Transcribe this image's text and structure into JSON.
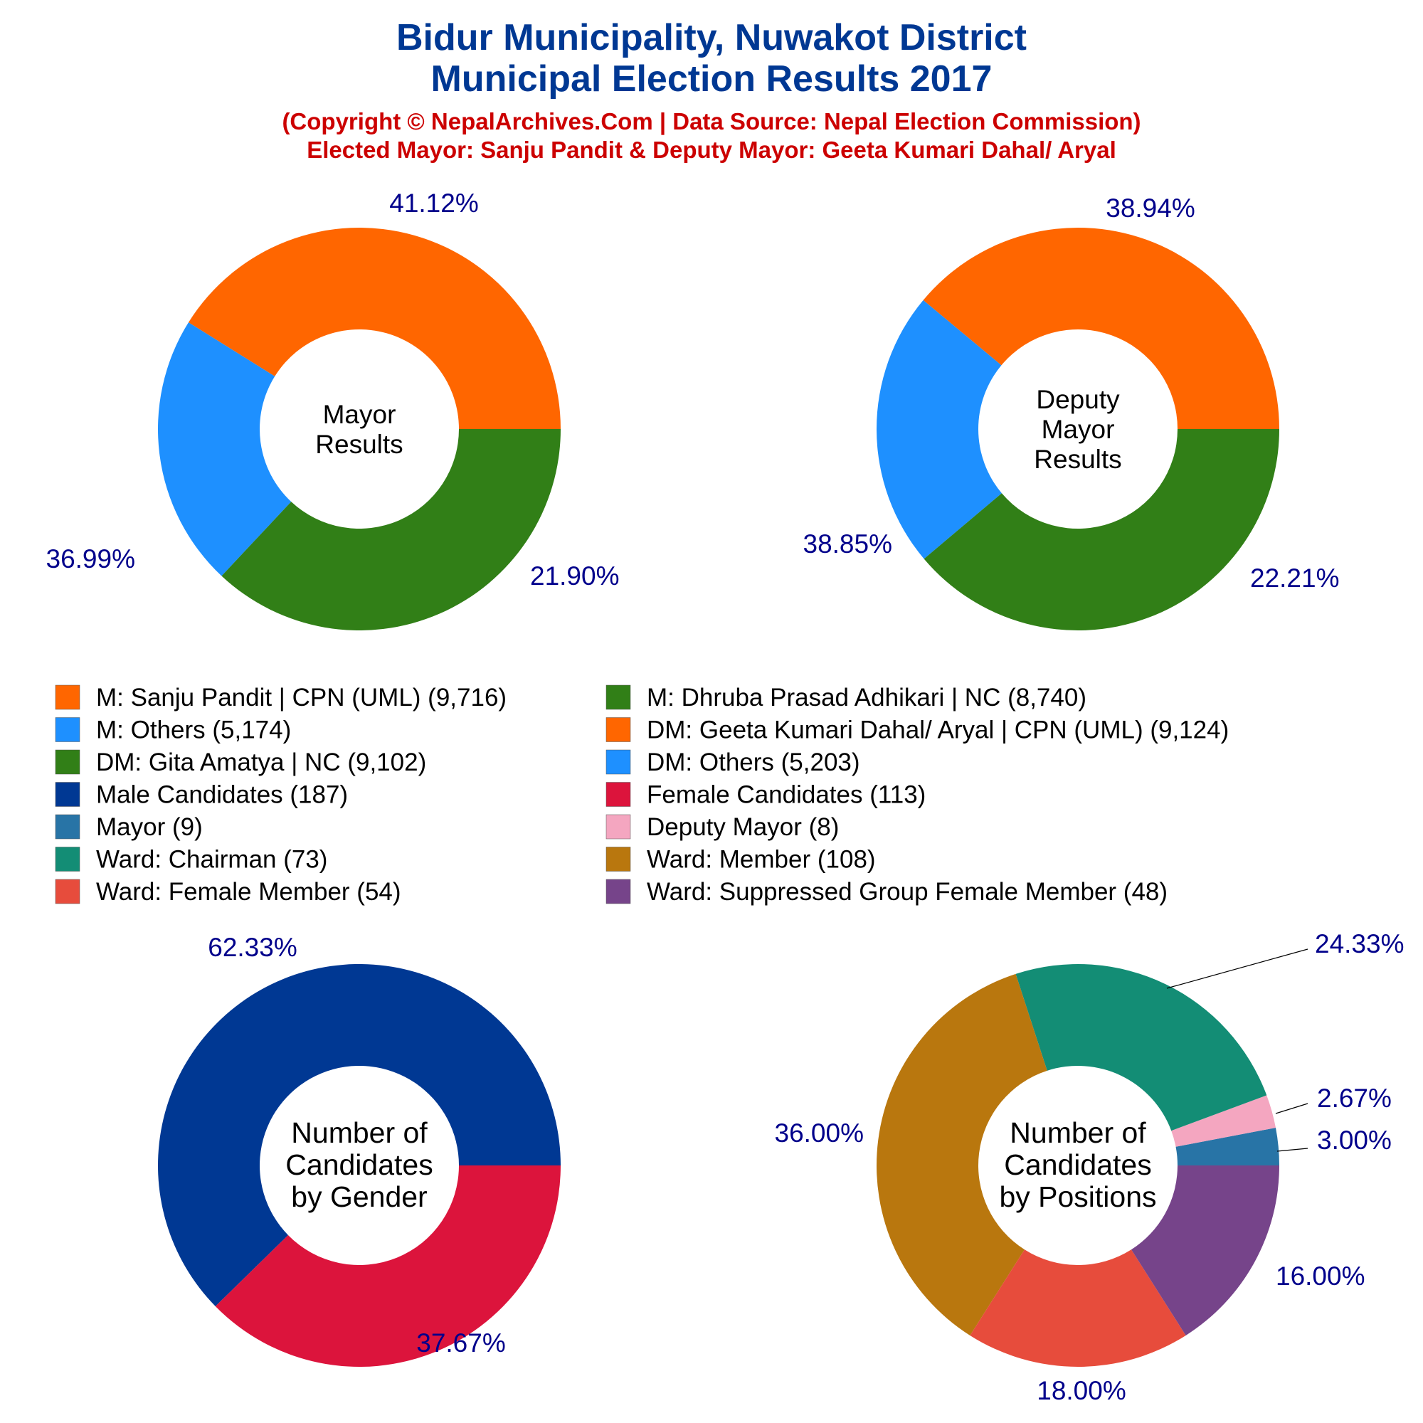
{
  "title_line1": "Bidur Municipality, Nuwakot District",
  "title_line2": "Municipal Election Results 2017",
  "subtitle_line1": "(Copyright © NepalArchives.Com | Data Source: Nepal Election Commission)",
  "subtitle_line2": "Elected Mayor: Sanju Pandit & Deputy Mayor: Geeta Kumari Dahal/ Aryal",
  "legend": [
    {
      "label": "M: Sanju Pandit | CPN (UML) (9,716)",
      "color": "#ff6600"
    },
    {
      "label": "M: Dhruba Prasad Adhikari | NC (8,740)",
      "color": "#317f17"
    },
    {
      "label": "M: Others (5,174)",
      "color": "#1e90ff"
    },
    {
      "label": "DM: Geeta Kumari Dahal/ Aryal | CPN (UML) (9,124)",
      "color": "#ff6600"
    },
    {
      "label": "DM: Gita Amatya | NC (9,102)",
      "color": "#317f17"
    },
    {
      "label": "DM: Others (5,203)",
      "color": "#1e90ff"
    },
    {
      "label": "Male Candidates (187)",
      "color": "#003893"
    },
    {
      "label": "Female Candidates (113)",
      "color": "#dc143c"
    },
    {
      "label": "Mayor (9)",
      "color": "#2874a6"
    },
    {
      "label": "Deputy Mayor (8)",
      "color": "#f4a6c0"
    },
    {
      "label": "Ward: Chairman (73)",
      "color": "#138d75"
    },
    {
      "label": "Ward: Member (108)",
      "color": "#b9770e"
    },
    {
      "label": "Ward: Female Member (54)",
      "color": "#e74c3c"
    },
    {
      "label": "Ward: Suppressed Group Female Member (48)",
      "color": "#76448a"
    }
  ],
  "chart_data": [
    {
      "type": "pie",
      "title": "Mayor Results",
      "center_lines": [
        "Mayor",
        "Results"
      ],
      "categories": [
        "M: Sanju Pandit | CPN (UML)",
        "M: Others",
        "M: Dhruba Prasad Adhikari | NC"
      ],
      "values": [
        9716,
        5174,
        8740
      ],
      "percent_labels": [
        "41.12%",
        "21.90%",
        "36.99%"
      ],
      "colors": [
        "#ff6600",
        "#1e90ff",
        "#317f17"
      ]
    },
    {
      "type": "pie",
      "title": "Deputy Mayor Results",
      "center_lines": [
        "Deputy",
        "Mayor",
        "Results"
      ],
      "categories": [
        "DM: Geeta Kumari Dahal/ Aryal | CPN (UML)",
        "DM: Others",
        "DM: Gita Amatya | NC"
      ],
      "values": [
        9124,
        5203,
        9102
      ],
      "percent_labels": [
        "38.94%",
        "22.21%",
        "38.85%"
      ],
      "colors": [
        "#ff6600",
        "#1e90ff",
        "#317f17"
      ]
    },
    {
      "type": "pie",
      "title": "Number of Candidates by Gender",
      "center_lines": [
        "Number of",
        "Candidates",
        "by Gender"
      ],
      "categories": [
        "Male Candidates",
        "Female Candidates"
      ],
      "values": [
        187,
        113
      ],
      "percent_labels": [
        "62.33%",
        "37.67%"
      ],
      "colors": [
        "#003893",
        "#dc143c"
      ]
    },
    {
      "type": "pie",
      "title": "Number of Candidates by Positions",
      "center_lines": [
        "Number of",
        "Candidates",
        "by Positions"
      ],
      "categories": [
        "Mayor",
        "Deputy Mayor",
        "Ward: Chairman",
        "Ward: Member",
        "Ward: Female Member",
        "Ward: Suppressed Group Female Member"
      ],
      "values": [
        9,
        8,
        73,
        108,
        54,
        48
      ],
      "percent_labels": [
        "3.00%",
        "2.67%",
        "24.33%",
        "36.00%",
        "18.00%",
        "16.00%"
      ],
      "colors": [
        "#2874a6",
        "#f4a6c0",
        "#138d75",
        "#b9770e",
        "#e74c3c",
        "#76448a"
      ]
    }
  ]
}
